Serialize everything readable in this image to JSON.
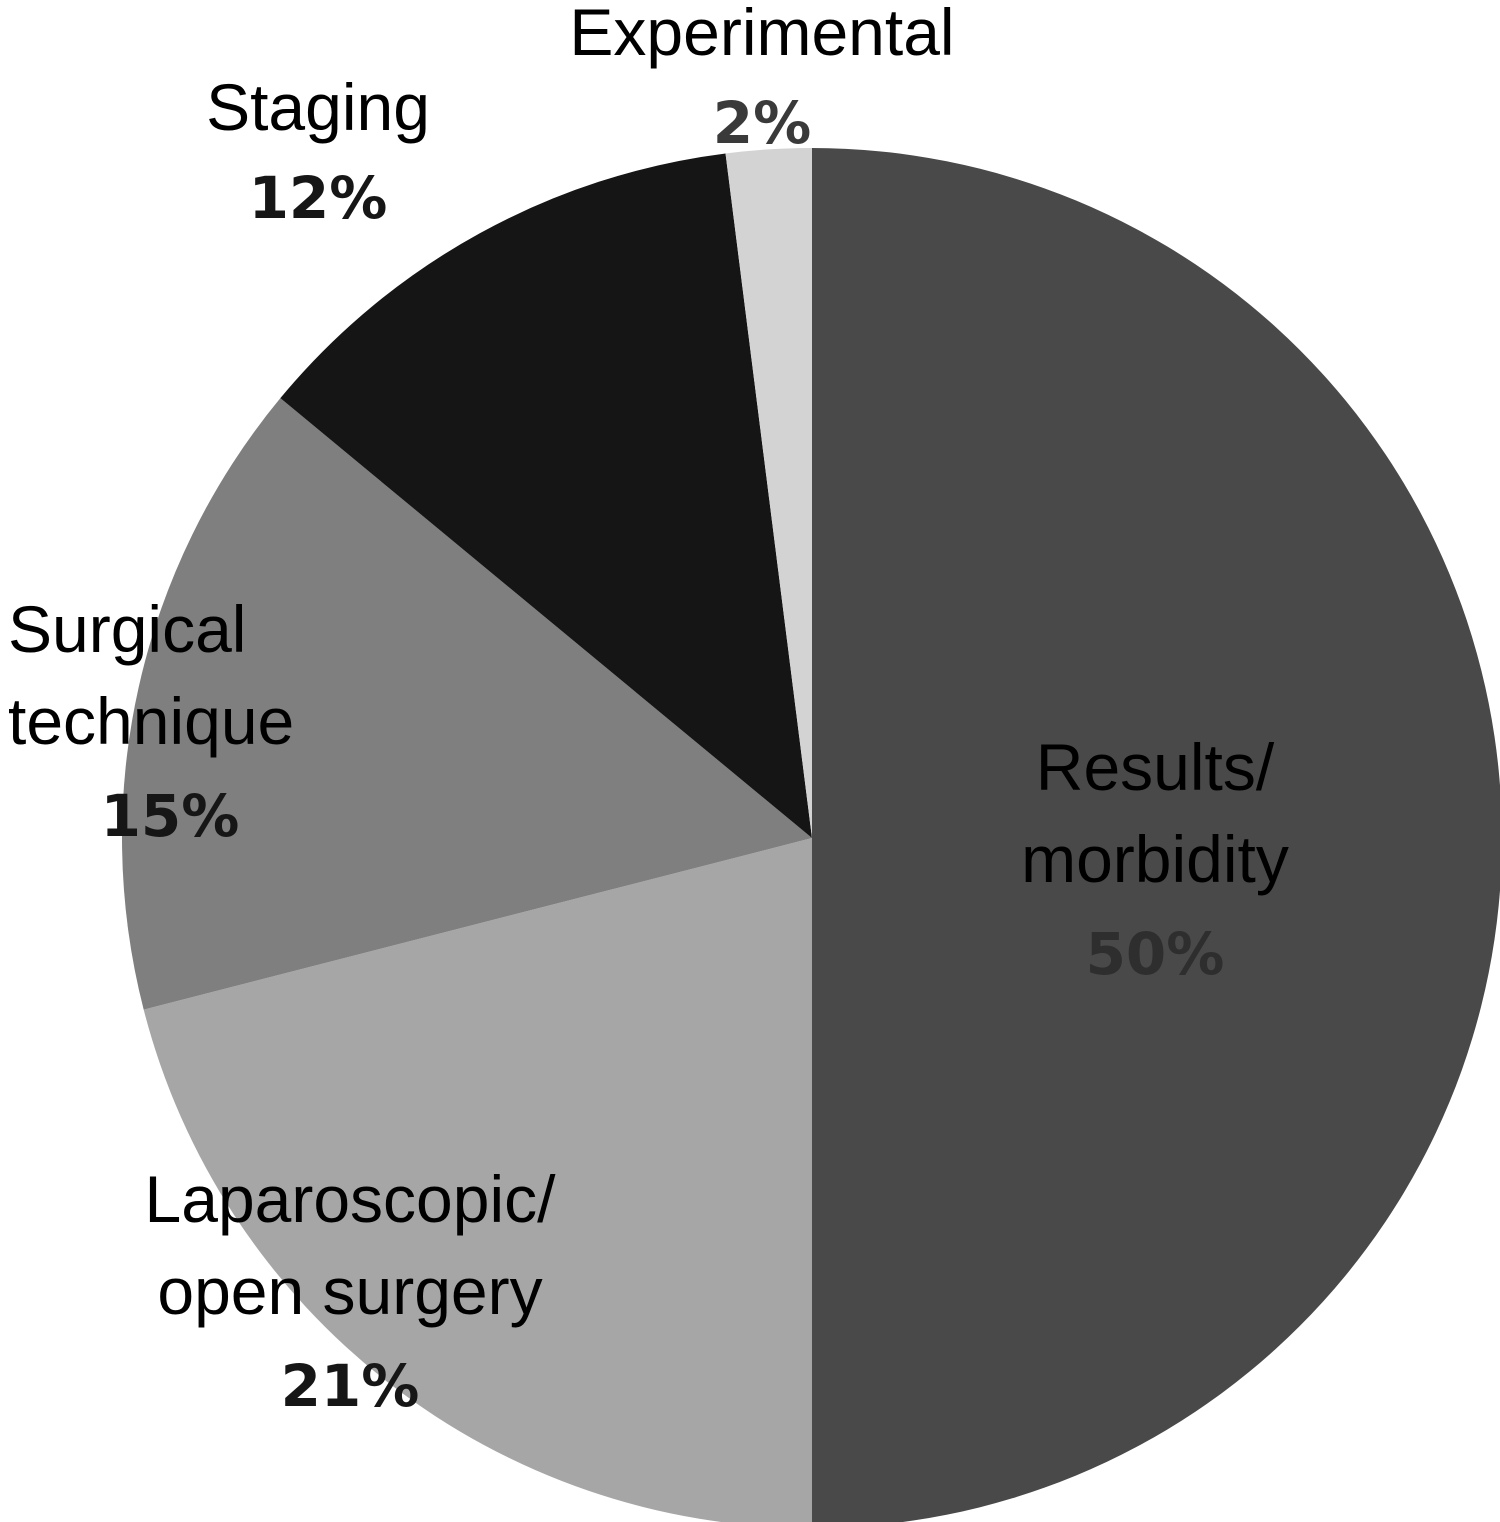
{
  "chart_data": {
    "type": "pie",
    "title": "",
    "legend": "none",
    "slices": [
      {
        "name_lines": [
          "Results/",
          "morbidity"
        ],
        "percent_label": "50%",
        "value": 50,
        "color": "#494949",
        "percent_color": "#2e2e2e"
      },
      {
        "name_lines": [
          "Laparoscopic/",
          "open surgery"
        ],
        "percent_label": "21%",
        "value": 21,
        "color": "#a6a6a6",
        "percent_color": "#161616"
      },
      {
        "name_lines": [
          "Surgical",
          "technique"
        ],
        "percent_label": "15%",
        "value": 15,
        "color": "#7f7f7f",
        "percent_color": "#161616"
      },
      {
        "name_lines": [
          "Staging"
        ],
        "percent_label": "12%",
        "value": 12,
        "color": "#151515",
        "percent_color": "#161616"
      },
      {
        "name_lines": [
          "Experimental"
        ],
        "percent_label": "2%",
        "value": 2,
        "color": "#d3d3d3",
        "percent_color": "#3a3a3a"
      }
    ]
  }
}
